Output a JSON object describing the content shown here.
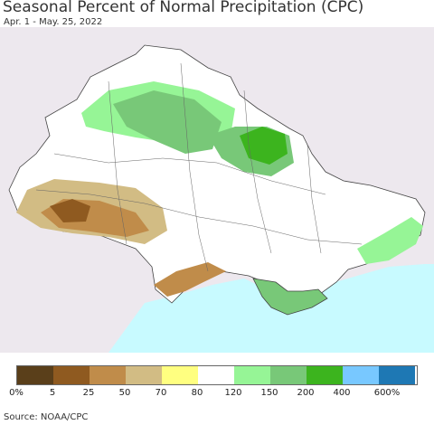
{
  "title": "Seasonal Percent of Normal Precipitation (CPC)",
  "subtitle": "Apr. 1 - May. 25, 2022",
  "source": "Source: NOAA/CPC",
  "map": {
    "region": "Ukraine",
    "background_color": "#ede8ee",
    "sea_color": "#c8faff",
    "country_fill": "#ffffff"
  },
  "legend": {
    "colors": [
      "#5a3f1a",
      "#8f5a20",
      "#c08c4a",
      "#d2bc84",
      "#ffff80",
      "#ffffff",
      "#96f596",
      "#78c878",
      "#3cb41e",
      "#78c8ff",
      "#1e78b4"
    ],
    "labels": [
      "0%",
      "5",
      "25",
      "50",
      "70",
      "80",
      "120",
      "150",
      "200",
      "400",
      "600%"
    ]
  }
}
